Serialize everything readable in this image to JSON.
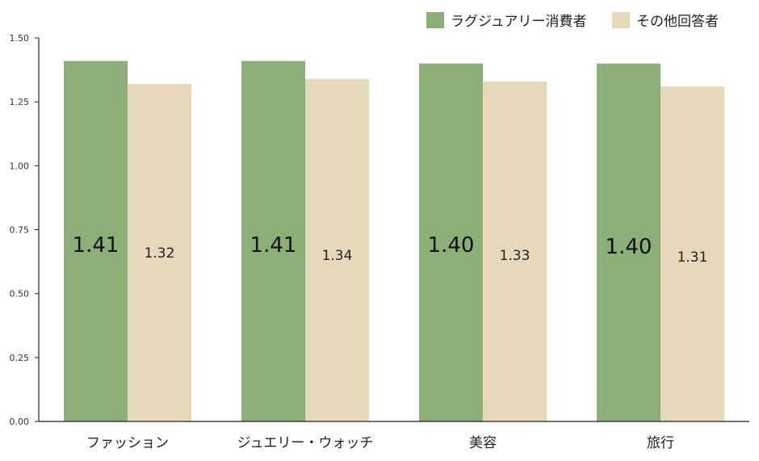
{
  "chart_data": {
    "type": "bar",
    "categories": [
      "ファッション",
      "ジュエリー・ウォッチ",
      "美容",
      "旅行"
    ],
    "series": [
      {
        "name": "ラグジュアリー消費者",
        "values": [
          1.41,
          1.41,
          1.4,
          1.4
        ],
        "color": "#8caf77",
        "labels": [
          "1.41",
          "1.41",
          "1.40",
          "1.40"
        ]
      },
      {
        "name": "その他回答者",
        "values": [
          1.32,
          1.34,
          1.33,
          1.31
        ],
        "color": "#e6d9b9",
        "labels": [
          "1.32",
          "1.34",
          "1.33",
          "1.31"
        ]
      }
    ],
    "ylim": [
      0,
      1.5
    ],
    "yticks": [
      0,
      0.25,
      0.5,
      0.75,
      1.0,
      1.25,
      1.5
    ],
    "ytick_labels": [
      "0.00",
      "0.25",
      "0.50",
      "0.75",
      "1.00",
      "1.25",
      "1.50"
    ],
    "grid": false,
    "legend_position": "top-right"
  }
}
